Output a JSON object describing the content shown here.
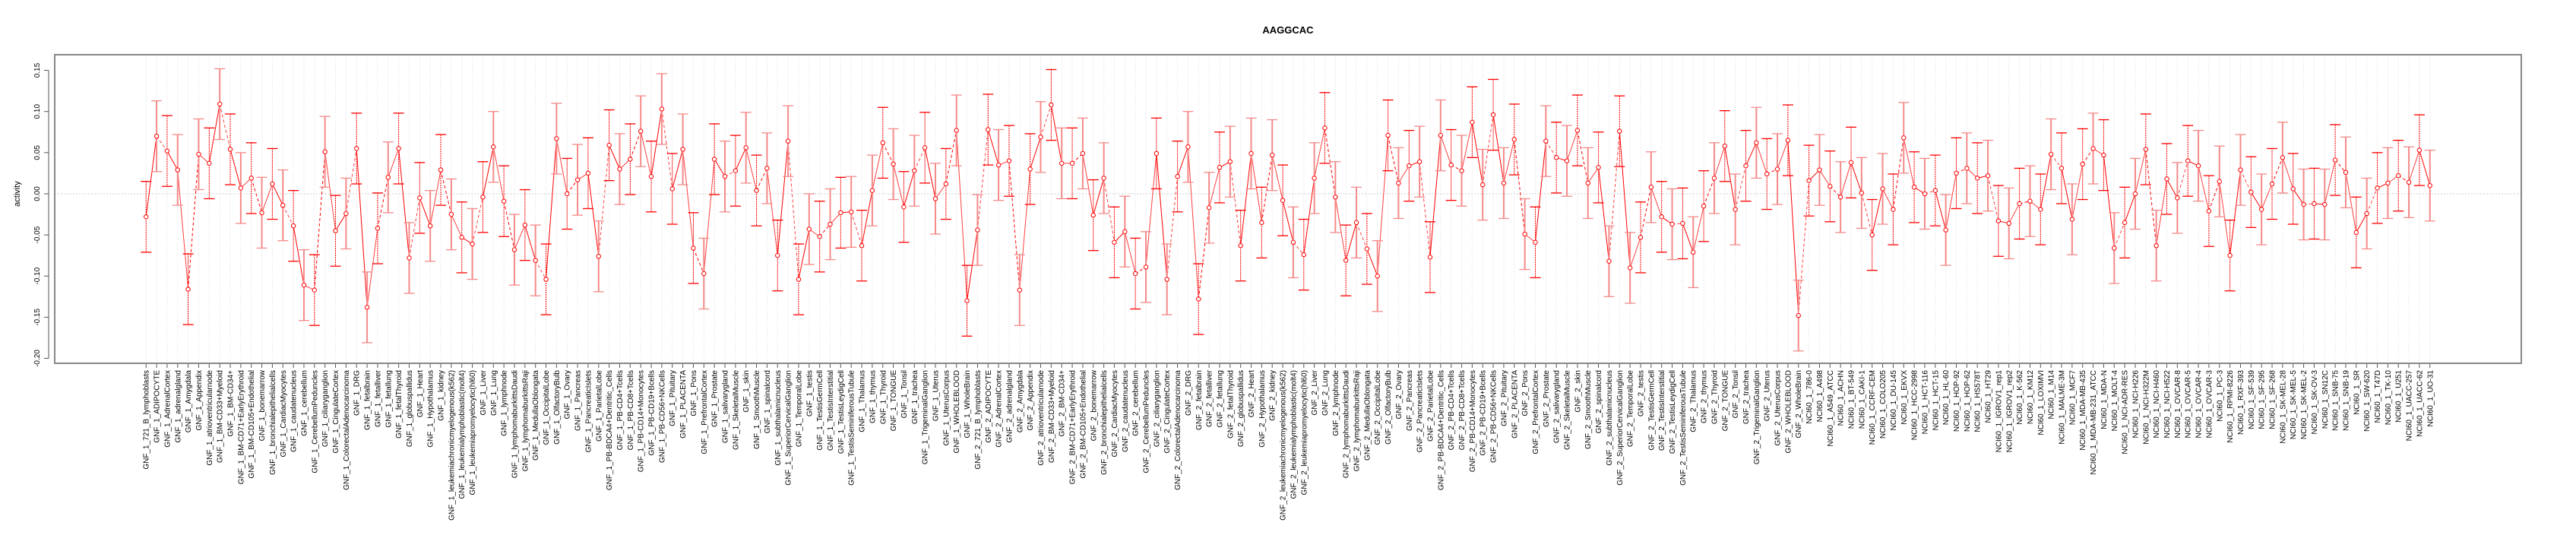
{
  "chart_data": {
    "type": "line",
    "title": "AAGGCAC",
    "xlabel": "",
    "ylabel": "activity",
    "ylim": [
      -0.206,
      0.169
    ],
    "yticks": [
      0.15,
      0.1,
      0.05,
      0.0,
      -0.05,
      -0.1,
      -0.15,
      -0.2
    ],
    "ytick_labels": [
      "0.15",
      "0.10",
      "0.05",
      "0.00",
      "-0.05",
      "-0.10",
      "-0.15",
      "-0.20"
    ],
    "grid": "dotted vertical line at each category, dotted horizontal line at 0",
    "legend": "none",
    "series_color": "#ff0000",
    "error_bar_halfwidth_approx": 0.043,
    "categories": [
      "GNF_1_721_B_lymphoblasts",
      "GNF_1_ADIPOCYTE",
      "GNF_1_AdrenalCortex",
      "GNF_1_adrenalgland",
      "GNF_1_Amygdala",
      "GNF_1_Appendix",
      "GNF_1_atrioventricularnode",
      "GNF_1_BM-CD33+Myeloid",
      "GNF_1_BM-CD34+",
      "GNF_1_BM-CD71+EarlyErythroid",
      "GNF_1_BM-CD105+Endothelial",
      "GNF_1_bonemarrow",
      "GNF_1_bronchialepithelialcells",
      "GNF_1_CardiacMyocytes",
      "GNF_1_caudatenucleus",
      "GNF_1_cerebellum",
      "GNF_1_CerebellumPeduncles",
      "GNF_1_ciliaryganglion",
      "GNF_1_CingulateCortex",
      "GNF_1_ColorectalAdenocarcinoma",
      "GNF_1_DRG",
      "GNF_1_fetalbrain",
      "GNF_1_fetalliver",
      "GNF_1_fetallung",
      "GNF_1_fetalThyroid",
      "GNF_1_globuspallidus",
      "GNF_1_Heart",
      "GNF_1_Hypothalamus",
      "GNF_1_kidney",
      "GNF_1_leukemiachronicmyelogenous(k562)",
      "GNF_1_leukemialymphoblastic(molt4)",
      "GNF_1_leukemiapromyelocytic(hl60)",
      "GNF_1_Liver",
      "GNF_1_Lung",
      "GNF_1_lymphnode",
      "GNF_1_lymphomaburkittsDaudi",
      "GNF_1_lymphomaburkittsRaji",
      "GNF_1_MedullaOblongata",
      "GNF_1_OccipitalLobe",
      "GNF_1_OlfactoryBulb",
      "GNF_1_Ovary",
      "GNF_1_Pancreas",
      "GNF_1_PancreaticIslets",
      "GNF_1_ParietalLobe",
      "GNF_1_PB-BDCA4+Dentritic_Cells",
      "GNF_1_PB-CD4+Tcells",
      "GNF_1_PB-CD8+Tcells",
      "GNF_1_PB-CD14+Monocytes",
      "GNF_1_PB-CD19+Bcells",
      "GNF_1_PB-CD56+NKCells",
      "GNF_1_Pituitary",
      "GNF_1_PLACENTA",
      "GNF_1_Pons",
      "GNF_1_PrefrontalCortex",
      "GNF_1_Prostate",
      "GNF_1_salivarygland",
      "GNF_1_SkeletalMuscle",
      "GNF_1_skin",
      "GNF_1_SmoothMuscle",
      "GNF_1_spinalcord",
      "GNF_1_subthalamicnucleus",
      "GNF_1_SuperiorCervicalGanglion",
      "GNF_1_TemporalLobe",
      "GNF_1_testis",
      "GNF_1_TestisGermCell",
      "GNF_1_TestisInterstitial",
      "GNF_1_TestisLeydigCell",
      "GNF_1_TestisSeminiferousTubule",
      "GNF_1_Thalamus",
      "GNF_1_thymus",
      "GNF_1_Thyroid",
      "GNF_1_TONGUE",
      "GNF_1_Tonsil",
      "GNF_1_trachea",
      "GNF_1_TrigeminalGanglion",
      "GNF_1_Uterus",
      "GNF_1_UterusCorpus",
      "GNF_1_WHOLEBLOOD",
      "GNF_1_WholeBrain",
      "GNF_2_721_B_lymphoblasts",
      "GNF_2_ADIPOCYTE",
      "GNF_2_AdrenalCortex",
      "GNF_2_adrenalgland",
      "GNF_2_Amygdala",
      "GNF_2_Appendix",
      "GNF_2_atrioventricularnode",
      "GNF_2_BM-CD33+Myeloid",
      "GNF_2_BM-CD34+",
      "GNF_2_BM-CD71+EarlyErythroid",
      "GNF_2_BM-CD105+Endothelial",
      "GNF_2_bonemarrow",
      "GNF_2_bronchialepithelialcells",
      "GNF_2_CardiacMyocytes",
      "GNF_2_caudatenucleus",
      "GNF_2_cerebellum",
      "GNF_2_CerebellumPeduncles",
      "GNF_2_ciliaryganglion",
      "GNF_2_CingulateCortex",
      "GNF_2_ColorectalAdenocarcinoma",
      "GNF_2_DRG",
      "GNF_2_fetalbrain",
      "GNF_2_fetalliver",
      "GNF_2_fetallung",
      "GNF_2_fetalThyroid",
      "GNF_2_globuspallidus",
      "GNF_2_Heart",
      "GNF_2_Hypothalamus",
      "GNF_2_kidney",
      "GNF_2_leukemiachronicmyelogenous(k562)",
      "GNF_2_leukemialymphoblastic(molt4)",
      "GNF_2_leukemiapromyelocytic(hl60)",
      "GNF_2_Liver",
      "GNF_2_Lung",
      "GNF_2_lymphnode",
      "GNF_2_lymphomaburkittsDaudi",
      "GNF_2_lymphomaburkittsRaji",
      "GNF_2_MedullaOblongata",
      "GNF_2_OccipitalLobe",
      "GNF_2_OlfactoryBulb",
      "GNF_2_Ovary",
      "GNF_2_Pancreas",
      "GNF_2_PancreaticIslets",
      "GNF_2_ParietalLobe",
      "GNF_2_PB-BDCA4+Dentritic_Cells",
      "GNF_2_PB-CD4+Tcells",
      "GNF_2_PB-CD8+Tcells",
      "GNF_2_PB-CD14+Monocytes",
      "GNF_2_PB-CD19+Bcells",
      "GNF_2_PB-CD56+NKCells",
      "GNF_2_Pituitary",
      "GNF_2_PLACENTA",
      "GNF_2_Pons",
      "GNF_2_PrefrontalCortex",
      "GNF_2_Prostate",
      "GNF_2_salivarygland",
      "GNF_2_SkeletalMuscle",
      "GNF_2_skin",
      "GNF_2_SmoothMuscle",
      "GNF_2_spinalcord",
      "GNF_2_subthalamicnucleus",
      "GNF_2_SuperiorCervicalGanglion",
      "GNF_2_TemporalLobe",
      "GNF_2_testis",
      "GNF_2_TestisGermCell",
      "GNF_2_TestisInterstitial",
      "GNF_2_TestisLeydigCell",
      "GNF_2_TestisSeminiferousTubule",
      "GNF_2_Thalamus",
      "GNF_2_thymus",
      "GNF_2_Thyroid",
      "GNF_2_TONGUE",
      "GNF_2_Tonsil",
      "GNF_2_trachea",
      "GNF_2_TrigeminalGanglion",
      "GNF_2_Uterus",
      "GNF_2_UterusCorpus",
      "GNF_2_WHOLEBLOOD",
      "GNF_2_WholeBrain",
      "NCI60_1_786-0",
      "NCI60_1_A498",
      "NCI60_1_A549_ATCC",
      "NCI60_1_ACHN",
      "NCI60_1_BT-549",
      "NCI60_1_CAKI-1",
      "NCI60_1_CCRF-CEM",
      "NCI60_1_COLO205",
      "NCI60_1_DU-145",
      "NCI60_1_EKVX",
      "NCI60_1_HCC-2998",
      "NCI60_1_HCT-116",
      "NCI60_1_HCT-15",
      "NCI60_1_HL-60",
      "NCI60_1_HOP-92",
      "NCI60_1_HOP-62",
      "NCI60_1_HS578T",
      "NCI60_1_HT29",
      "NCI60_1_IGROV1_rep1",
      "NCI60_1_IGROV1_rep2",
      "NCI60_1_K-562",
      "NCI60_1_KM12",
      "NCI60_1_LOXIMVI",
      "NCI60_1_M14",
      "NCI60_1_MALME-3M",
      "NCI60_1_MCF7",
      "NCI60_1_MDA-MB-435",
      "NCI60_1_MDA-MB-231_ATCC",
      "NCI60_1_MDA-N",
      "NCI60_1_MOLT-4",
      "NCI60_1_NCI-ADR-RES",
      "NCI60_1_NCI-H226",
      "NCI60_1_NCI-H322M",
      "NCI60_1_NCI-H460",
      "NCI60_1_NCI-H522",
      "NCI60_1_OVCAR-8",
      "NCI60_1_OVCAR-5",
      "NCI60_1_OVCAR-4",
      "NCI60_1_OVCAR-3",
      "NCI60_1_PC-3",
      "NCI60_1_RPMI-8226",
      "NCI60_1_RXF-393",
      "NCI60_1_SF-539",
      "NCI60_1_SF-295",
      "NCI60_1_SF-268",
      "NCI60_1_SK-MEL-28",
      "NCI60_1_SK-MEL-5",
      "NCI60_1_SK-MEL-2",
      "NCI60_1_SK-OV-3",
      "NCI60_1_SN12C",
      "NCI60_1_SNB-75",
      "NCI60_1_SNB-19",
      "NCI60_1_SR",
      "NCI60_1_SW-620",
      "NCI60_1_T47D",
      "NCI60_1_TK-10",
      "NCI60_1_U251",
      "NCI60_1_UACC-257",
      "NCI60_1_UACC-62",
      "NCI60_1_UO-31"
    ],
    "values": [
      -0.028,
      0.07,
      0.052,
      0.029,
      -0.116,
      0.048,
      0.037,
      0.109,
      0.054,
      0.007,
      0.019,
      -0.023,
      0.012,
      -0.014,
      -0.039,
      -0.111,
      -0.117,
      0.051,
      -0.045,
      -0.024,
      0.055,
      -0.138,
      -0.042,
      0.02,
      0.055,
      -0.078,
      -0.005,
      -0.039,
      0.029,
      -0.025,
      -0.053,
      -0.061,
      -0.004,
      0.057,
      -0.009,
      -0.068,
      -0.038,
      -0.081,
      -0.104,
      0.067,
      0.0,
      0.017,
      0.025,
      -0.076,
      0.059,
      0.03,
      0.042,
      0.076,
      0.021,
      0.103,
      0.006,
      0.054,
      -0.066,
      -0.097,
      0.042,
      0.021,
      0.028,
      0.056,
      0.004,
      0.031,
      -0.075,
      0.064,
      -0.104,
      -0.043,
      -0.052,
      -0.037,
      -0.023,
      -0.022,
      -0.063,
      0.004,
      0.062,
      0.036,
      -0.016,
      0.028,
      0.056,
      -0.006,
      0.012,
      0.077,
      -0.13,
      -0.044,
      0.078,
      0.035,
      0.04,
      -0.117,
      0.03,
      0.069,
      0.108,
      0.037,
      0.037,
      0.049,
      -0.026,
      0.019,
      -0.059,
      -0.046,
      -0.097,
      -0.089,
      0.049,
      -0.104,
      0.021,
      0.057,
      -0.128,
      -0.017,
      0.032,
      0.039,
      -0.063,
      0.049,
      -0.035,
      0.047,
      -0.008,
      -0.059,
      -0.074,
      0.019,
      0.08,
      -0.004,
      -0.081,
      -0.035,
      -0.067,
      -0.1,
      0.071,
      0.013,
      0.034,
      0.039,
      -0.077,
      0.071,
      0.035,
      0.028,
      0.087,
      0.011,
      0.096,
      0.013,
      0.066,
      -0.049,
      -0.059,
      0.064,
      0.044,
      0.04,
      0.077,
      0.013,
      0.032,
      -0.082,
      0.076,
      -0.09,
      -0.053,
      0.008,
      -0.028,
      -0.037,
      -0.036,
      -0.071,
      -0.015,
      0.019,
      0.058,
      -0.019,
      0.034,
      0.062,
      0.024,
      0.03,
      0.065,
      -0.148,
      0.016,
      0.029,
      0.009,
      -0.004,
      0.038,
      0.001,
      -0.05,
      0.006,
      -0.019,
      0.068,
      0.008,
      0.0,
      0.004,
      -0.044,
      0.025,
      0.031,
      0.019,
      0.022,
      -0.033,
      -0.036,
      -0.012,
      -0.009,
      -0.019,
      0.048,
      0.031,
      -0.031,
      0.036,
      0.055,
      0.047,
      -0.066,
      -0.035,
      0.0,
      0.054,
      -0.063,
      0.018,
      -0.005,
      0.04,
      0.034,
      -0.021,
      0.015,
      -0.075,
      0.029,
      0.002,
      -0.019,
      0.012,
      0.044,
      0.006,
      -0.013,
      -0.012,
      -0.013,
      0.041,
      0.026,
      -0.047,
      -0.024,
      0.007,
      0.013,
      0.022,
      0.014,
      0.053,
      0.01
    ]
  }
}
